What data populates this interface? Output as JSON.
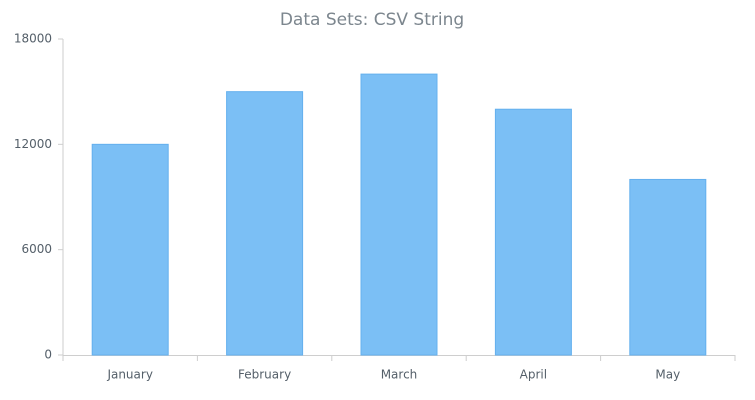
{
  "chart_data": {
    "type": "bar",
    "title": "Data Sets: CSV String",
    "categories": [
      "January",
      "February",
      "March",
      "April",
      "May"
    ],
    "values": [
      12000,
      15000,
      16000,
      14000,
      10000
    ],
    "color": "#7bbff5",
    "ylim": [
      0,
      18000
    ],
    "yticks": [
      0,
      6000,
      12000,
      18000
    ],
    "grid": false
  }
}
